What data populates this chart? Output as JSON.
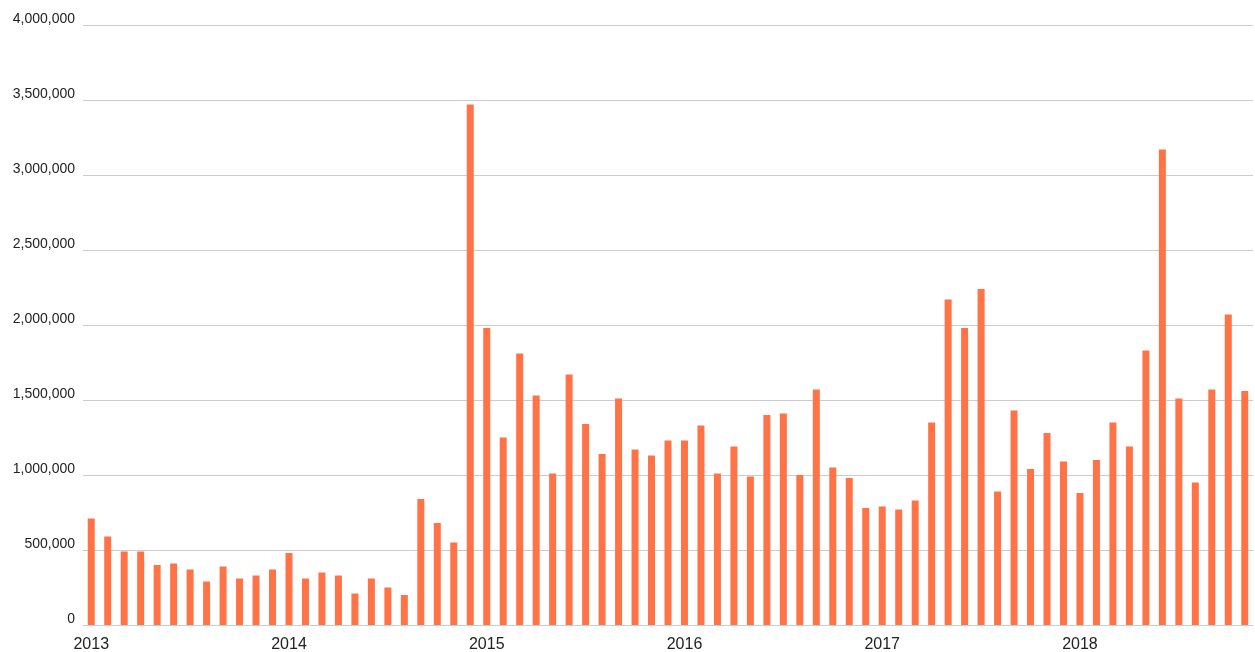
{
  "chart_data": {
    "type": "bar",
    "categories": [
      "2013",
      null,
      null,
      null,
      null,
      null,
      null,
      null,
      null,
      null,
      null,
      null,
      "2014",
      null,
      null,
      null,
      null,
      null,
      null,
      null,
      null,
      null,
      null,
      null,
      "2015",
      null,
      null,
      null,
      null,
      null,
      null,
      null,
      null,
      null,
      null,
      null,
      "2016",
      null,
      null,
      null,
      null,
      null,
      null,
      null,
      null,
      null,
      null,
      null,
      "2017",
      null,
      null,
      null,
      null,
      null,
      null,
      null,
      null,
      null,
      null,
      null,
      "2018",
      null,
      null,
      null,
      null,
      null,
      null,
      null,
      null,
      null,
      null
    ],
    "values": [
      710000,
      590000,
      490000,
      490000,
      400000,
      410000,
      370000,
      290000,
      390000,
      310000,
      330000,
      370000,
      480000,
      310000,
      350000,
      330000,
      210000,
      310000,
      250000,
      200000,
      840000,
      680000,
      550000,
      3470000,
      1980000,
      1250000,
      1810000,
      1530000,
      1010000,
      1670000,
      1340000,
      1140000,
      1510000,
      1170000,
      1130000,
      1230000,
      1230000,
      1330000,
      1010000,
      1190000,
      990000,
      1400000,
      1410000,
      1000000,
      1570000,
      1050000,
      980000,
      780000,
      790000,
      770000,
      830000,
      1350000,
      2170000,
      1980000,
      2240000,
      890000,
      1430000,
      1040000,
      1280000,
      1090000,
      880000,
      1100000,
      1350000,
      1190000,
      1830000,
      3170000,
      1510000,
      950000,
      1570000,
      2070000,
      1560000
    ],
    "color": "#ff7346",
    "ylim": [
      0,
      4000000
    ],
    "yticks": [
      0,
      {
        "value": 500000,
        "label": "500,000"
      },
      {
        "value": 1000000,
        "label": "1,000,000"
      },
      {
        "value": 1500000,
        "label": "1,500,000"
      },
      {
        "value": 2000000,
        "label": "2,000,000"
      },
      {
        "value": 2500000,
        "label": "2,500,000"
      },
      {
        "value": 3000000,
        "label": "3,000,000"
      },
      {
        "value": 3500000,
        "label": "3,500,000"
      },
      {
        "value": 4000000,
        "label": "4,000,000"
      }
    ],
    "grid": "y"
  }
}
